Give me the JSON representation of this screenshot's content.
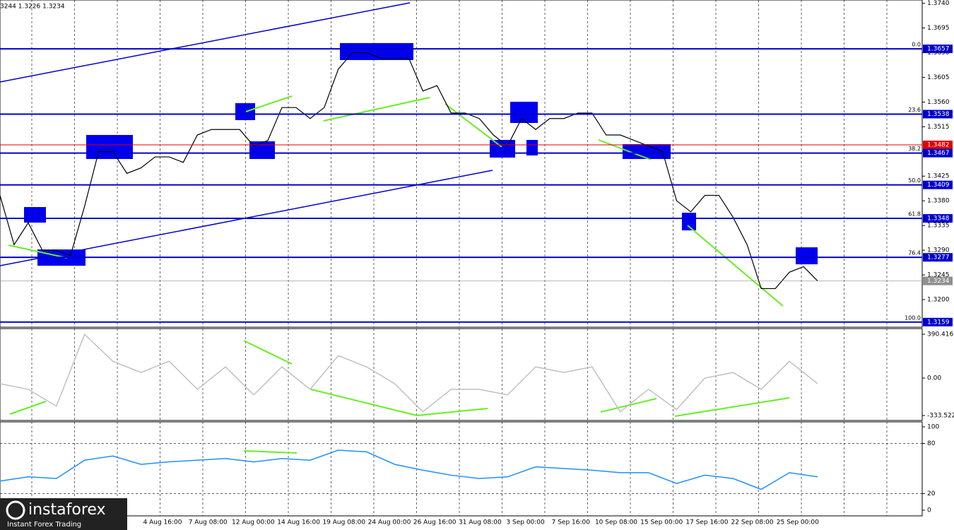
{
  "header": "3244 1.3226 1.3234",
  "chart_data": [
    {
      "type": "line",
      "name": "price",
      "color": "#000000",
      "values": [
        1.339,
        1.33,
        1.334,
        1.329,
        1.329,
        1.328,
        1.337,
        1.347,
        1.347,
        1.343,
        1.344,
        1.346,
        1.346,
        1.345,
        1.35,
        1.351,
        1.351,
        1.351,
        1.348,
        1.349,
        1.355,
        1.355,
        1.353,
        1.355,
        1.362,
        1.365,
        1.365,
        1.364,
        1.364,
        1.364,
        1.358,
        1.359,
        1.354,
        1.354,
        1.353,
        1.35,
        1.348,
        1.353,
        1.351,
        1.353,
        1.353,
        1.354,
        1.354,
        1.35,
        1.35,
        1.349,
        1.348,
        1.347,
        1.338,
        1.336,
        1.339,
        1.339,
        1.335,
        1.33,
        1.322,
        1.322,
        1.325,
        1.326,
        1.3234
      ],
      "ylim": [
        1.3151,
        1.3746
      ],
      "yticks": [
        {
          "value": 1.374,
          "label": "1.3740"
        },
        1.3695,
        {
          "value": 1.365,
          "label": "1.3650"
        },
        1.3605,
        {
          "value": 1.356,
          "label": "1.3560"
        },
        1.3515,
        {
          "value": 1.347,
          "label": "1.3470"
        },
        1.3425,
        {
          "value": 1.338,
          "label": "1.3380"
        },
        1.3335,
        {
          "value": 1.329,
          "label": "1.3290"
        },
        1.3245,
        {
          "value": 1.32,
          "label": "1.3200"
        }
      ],
      "levels": [
        {
          "value": 1.3657,
          "fib": "0.0",
          "color": "#0000cc"
        },
        {
          "value": 1.3538,
          "fib": "23.6",
          "color": "#0000cc"
        },
        {
          "value": 1.3482,
          "color": "#e00000"
        },
        {
          "value": 1.3467,
          "fib": "38.2",
          "color": "#0000cc"
        },
        {
          "value": 1.3409,
          "fib": "50.0",
          "color": "#0000cc"
        },
        {
          "value": 1.3348,
          "fib": "61.8",
          "color": "#0000cc"
        },
        {
          "value": 1.3277,
          "fib": "76.4",
          "color": "#0000cc"
        },
        {
          "value": 1.3234,
          "color": "#909090"
        },
        {
          "value": 1.3159,
          "fib": "100.0",
          "color": "#0000cc"
        }
      ]
    },
    {
      "type": "line",
      "name": "cci",
      "color": "#c0c0c0",
      "values": [
        -50,
        -100,
        -250,
        390,
        150,
        50,
        150,
        -100,
        100,
        -150,
        100,
        -100,
        200,
        100,
        -50,
        -300,
        -100,
        -100,
        -150,
        100,
        50,
        100,
        -300,
        -100,
        -280,
        0,
        50,
        -100,
        150,
        -50
      ],
      "ylim": [
        -333.522,
        390.4163
      ],
      "yticks": [
        390.4163,
        {
          "value": 0,
          "label": "0.00"
        },
        -333.522
      ]
    },
    {
      "type": "line",
      "name": "rsi",
      "color": "#1e90ff",
      "values": [
        35,
        40,
        38,
        60,
        65,
        55,
        58,
        60,
        62,
        58,
        62,
        60,
        72,
        70,
        55,
        48,
        42,
        38,
        40,
        52,
        50,
        48,
        45,
        45,
        32,
        42,
        38,
        25,
        45,
        40
      ],
      "ylim": [
        0,
        100
      ],
      "yticks": [
        100,
        80,
        20,
        0
      ]
    }
  ],
  "x_labels": [
    "4 Aug 16:00",
    "7 Aug 08:00",
    "12 Aug 00:00",
    "14 Aug 16:00",
    "19 Aug 08:00",
    "24 Aug 00:00",
    "26 Aug 16:00",
    "31 Aug 08:00",
    "3 Sep 00:00",
    "7 Sep 16:00",
    "10 Sep 08:00",
    "15 Sep 00:00",
    "17 Sep 16:00",
    "22 Sep 08:00",
    "25 Sep 00:00"
  ],
  "logo": {
    "name": "instaforex",
    "tagline": "Instant Forex Trading"
  }
}
